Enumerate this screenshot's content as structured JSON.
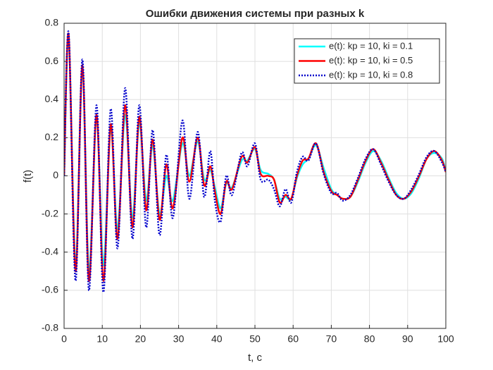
{
  "chart_data": {
    "type": "line",
    "title": "Ошибки движения системы при разных k",
    "xlabel": "t, c",
    "ylabel": "f(t)",
    "x": [
      0,
      1.2,
      3,
      4.8,
      6.5,
      8.5,
      10.3,
      12.2,
      14,
      16,
      17.9,
      19.7,
      21.5,
      23.2,
      25,
      26.8,
      28.5,
      31,
      32.8,
      35,
      36.7,
      38.3,
      39.5,
      41,
      42.5,
      44,
      46.5,
      48,
      50,
      51.5,
      53.5,
      55,
      56.5,
      58,
      59.5,
      61,
      62.5,
      64,
      66,
      68,
      70,
      71.5,
      73,
      75,
      77,
      79,
      81,
      83,
      85,
      87,
      89,
      91,
      93,
      95,
      97,
      99,
      100
    ],
    "series": [
      {
        "name": "e(t): kp = 10, ki = 0.1",
        "color": "#00ffff",
        "style": "solid",
        "width": 2.5,
        "values": [
          0,
          0.73,
          -0.47,
          0.56,
          -0.5,
          0.3,
          -0.47,
          0.25,
          -0.28,
          0.32,
          -0.22,
          0.28,
          -0.13,
          0.16,
          -0.2,
          0.0,
          -0.13,
          0.17,
          0.0,
          0.18,
          -0.02,
          0.03,
          -0.06,
          -0.17,
          -0.04,
          -0.06,
          0.08,
          0.08,
          0.14,
          0.03,
          0.01,
          -0.02,
          -0.12,
          -0.11,
          -0.12,
          -0.01,
          0.06,
          0.09,
          0.16,
          0.04,
          -0.07,
          -0.1,
          -0.12,
          -0.11,
          -0.03,
          0.07,
          0.13,
          0.08,
          -0.01,
          -0.09,
          -0.12,
          -0.09,
          -0.01,
          0.09,
          0.12,
          0.09,
          0.02
        ]
      },
      {
        "name": "e(t): kp = 10, ki = 0.5",
        "color": "#ff0000",
        "style": "solid",
        "width": 2.5,
        "values": [
          0,
          0.74,
          -0.5,
          0.58,
          -0.55,
          0.32,
          -0.55,
          0.27,
          -0.33,
          0.37,
          -0.27,
          0.31,
          -0.18,
          0.19,
          -0.23,
          0.06,
          -0.17,
          0.2,
          -0.03,
          0.2,
          -0.05,
          0.05,
          -0.08,
          -0.2,
          -0.03,
          -0.07,
          0.1,
          0.07,
          0.15,
          0.01,
          0.0,
          -0.02,
          -0.14,
          -0.1,
          -0.12,
          0.0,
          0.08,
          0.09,
          0.17,
          0.02,
          -0.08,
          -0.1,
          -0.12,
          -0.11,
          -0.02,
          0.08,
          0.14,
          0.07,
          -0.02,
          -0.1,
          -0.12,
          -0.08,
          0.0,
          0.09,
          0.13,
          0.08,
          0.02
        ]
      },
      {
        "name": "e(t): kp = 10, ki = 0.8",
        "color": "#0000cc",
        "style": "dotted",
        "width": 2.5,
        "values": [
          0,
          0.75,
          -0.55,
          0.61,
          -0.6,
          0.37,
          -0.61,
          0.35,
          -0.38,
          0.46,
          -0.33,
          0.37,
          -0.27,
          0.24,
          -0.31,
          0.11,
          -0.22,
          0.29,
          -0.12,
          0.23,
          -0.11,
          0.13,
          -0.13,
          -0.24,
          0.0,
          -0.1,
          0.12,
          0.05,
          0.17,
          -0.02,
          -0.02,
          -0.07,
          -0.16,
          -0.07,
          -0.14,
          0.02,
          0.1,
          0.08,
          0.17,
          0.01,
          -0.09,
          -0.09,
          -0.13,
          -0.1,
          -0.01,
          0.09,
          0.14,
          0.06,
          -0.03,
          -0.1,
          -0.12,
          -0.07,
          0.01,
          0.1,
          0.13,
          0.07,
          0.02
        ]
      }
    ],
    "xlim": [
      0,
      100
    ],
    "xticks": [
      0,
      10,
      20,
      30,
      40,
      50,
      60,
      70,
      80,
      90,
      100
    ],
    "ylim": [
      -0.8,
      0.8
    ],
    "yticks": [
      -0.8,
      -0.6,
      -0.4,
      -0.2,
      0,
      0.2,
      0.4,
      0.6,
      0.8
    ],
    "grid": true,
    "legend": "northeast"
  }
}
